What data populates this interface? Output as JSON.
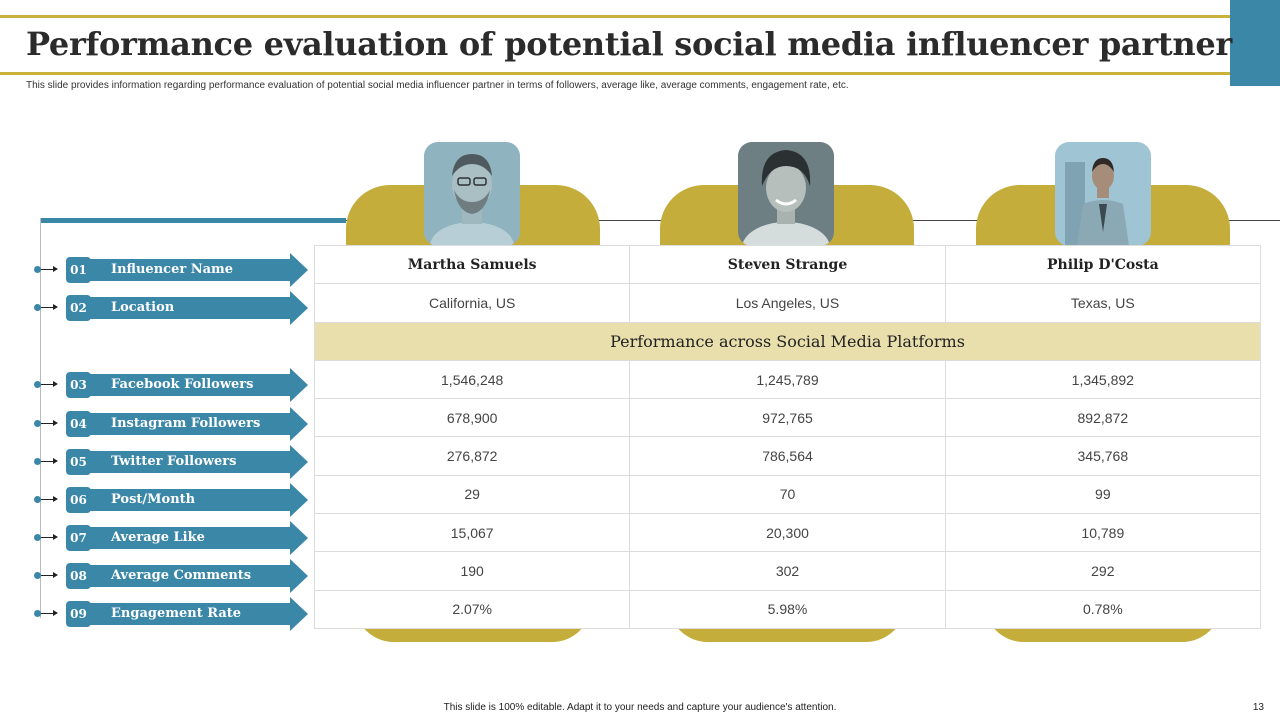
{
  "header": {
    "title": "Performance evaluation of potential social media influencer partner",
    "subtitle": "This slide provides information regarding performance evaluation of potential social media influencer partner in terms of followers, average like, average comments, engagement rate, etc."
  },
  "labels": [
    {
      "num": "01",
      "text": "Influencer Name"
    },
    {
      "num": "02",
      "text": "Location"
    },
    {
      "num": "03",
      "text": "Facebook Followers"
    },
    {
      "num": "04",
      "text": "Instagram Followers"
    },
    {
      "num": "05",
      "text": "Twitter Followers"
    },
    {
      "num": "06",
      "text": "Post/Month"
    },
    {
      "num": "07",
      "text": "Average Like"
    },
    {
      "num": "08",
      "text": "Average Comments"
    },
    {
      "num": "09",
      "text": "Engagement Rate"
    }
  ],
  "influencers": [
    {
      "name": "Martha Samuels",
      "location": "California, US",
      "stats": [
        "1,546,248",
        "678,900",
        "276,872",
        "29",
        "15,067",
        "190",
        "2.07%"
      ]
    },
    {
      "name": "Steven Strange",
      "location": "Los Angeles, US",
      "stats": [
        "1,245,789",
        "972,765",
        "786,564",
        "70",
        "20,300",
        "302",
        "5.98%"
      ]
    },
    {
      "name": "Philip  D'Costa",
      "location": "Texas, US",
      "stats": [
        "1,345,892",
        "892,872",
        "345,768",
        "99",
        "10,789",
        "292",
        "0.78%"
      ]
    }
  ],
  "band_label": "Performance across Social Media Platforms",
  "footer": {
    "note": "This slide is 100% editable.  Adapt it to your needs and capture your audience's attention.",
    "page_number": "13"
  },
  "colors": {
    "accent_blue": "#3b87a8",
    "accent_gold": "#c4ad3a",
    "band": "#e8dfac"
  }
}
